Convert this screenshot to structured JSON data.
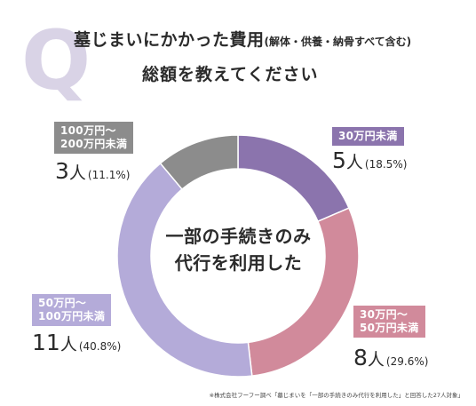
{
  "header": {
    "q_mark": "Q",
    "title_main": "墓じまいにかかった費用",
    "title_sub": "(解体・供養・納骨すべて含む)",
    "title_line2": "総額を教えてください"
  },
  "center": {
    "line1": "一部の手続きのみ",
    "line2": "代行を利用した"
  },
  "colors": {
    "q_mark": "#d9d3e6",
    "seg_under30": "#8b74ad",
    "seg_30_50": "#d18a9b",
    "seg_50_100": "#b4abd9",
    "seg_100_200": "#8c8c8c"
  },
  "chart_data": {
    "type": "pie",
    "donut": true,
    "title": "",
    "categories": [
      "30万円未満",
      "30万円〜50万円未満",
      "50万円〜100万円未満",
      "100万円〜200万円未満"
    ],
    "values": [
      5,
      8,
      11,
      3
    ],
    "percentages": [
      18.5,
      29.6,
      40.8,
      11.1
    ],
    "unit": "人",
    "start": "12 o'clock",
    "direction": "clockwise"
  },
  "labels": {
    "under30": {
      "line1": "30万円未満",
      "num": "5",
      "unit": "人",
      "pct": "(18.5%)"
    },
    "r30_50": {
      "line1": "30万円〜",
      "line2": "50万円未満",
      "num": "8",
      "unit": "人",
      "pct": "(29.6%)"
    },
    "r50_100": {
      "line1": "50万円〜",
      "line2": "100万円未満",
      "num": "11",
      "unit": "人",
      "pct": "(40.8%)"
    },
    "r100_200": {
      "line1": "100万円〜",
      "line2": "200万円未満",
      "num": "3",
      "unit": "人",
      "pct": "(11.1%)"
    }
  },
  "footnote": "※株式会社フーフー調べ「墓じまいを「一部の手続きのみ代行を利用した」と回答した27人対象」"
}
